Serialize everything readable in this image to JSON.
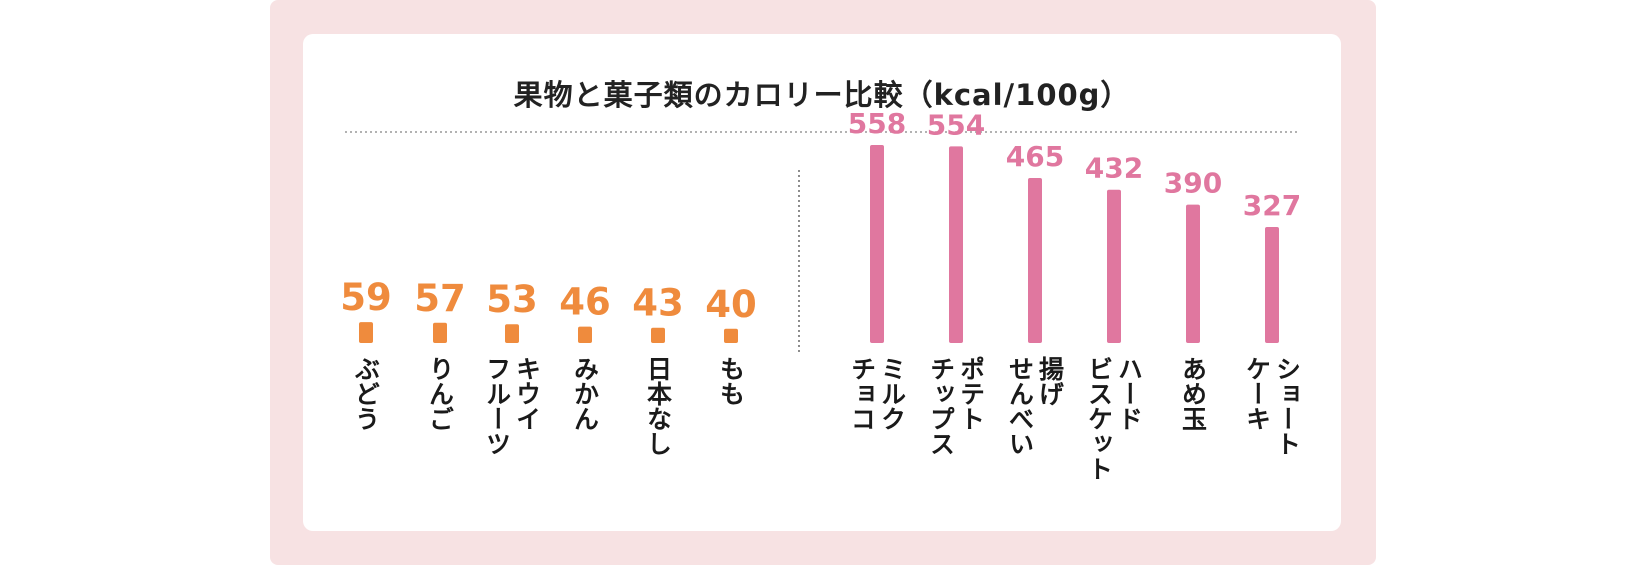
{
  "chart_data": {
    "type": "bar",
    "title": "果物と菓子類のカロリー比較（kcal/100g）",
    "unit": "kcal/100g",
    "colors": {
      "fruit": "#ef8b3d",
      "snack": "#e0779f"
    },
    "groups": [
      {
        "name": "fruit",
        "categories": [
          "ぶどう",
          "りんご",
          "キウイフルーツ",
          "みかん",
          "日本なし",
          "もも"
        ],
        "label_lines": [
          [
            "ぶどう"
          ],
          [
            "りんご"
          ],
          [
            "キウイ",
            "フルーツ"
          ],
          [
            "みかん"
          ],
          [
            "日本なし"
          ],
          [
            "もも"
          ]
        ],
        "values": [
          59,
          57,
          53,
          46,
          43,
          40
        ]
      },
      {
        "name": "snack",
        "categories": [
          "ミルクチョコ",
          "ポテトチップス",
          "揚げせんべい",
          "ハードビスケット",
          "あめ玉",
          "ショートケーキ"
        ],
        "label_lines": [
          [
            "ミルク",
            "チョコ"
          ],
          [
            "ポテト",
            "チップス"
          ],
          [
            "揚げ",
            "せんべい"
          ],
          [
            "ハード",
            "ビスケット"
          ],
          [
            "あめ玉"
          ],
          [
            "ショート",
            "ケーキ"
          ]
        ],
        "values": [
          558,
          554,
          465,
          432,
          390,
          327
        ]
      }
    ],
    "ylim": [
      0,
      600
    ]
  }
}
